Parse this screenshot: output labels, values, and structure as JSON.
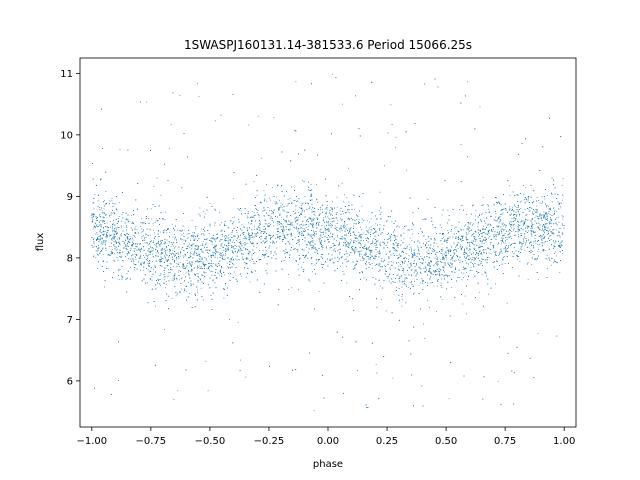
{
  "chart_data": {
    "type": "scatter",
    "title": "1SWASPJ160131.14-381533.6 Period 15066.25s",
    "xlabel": "phase",
    "ylabel": "flux",
    "xlim": [
      -1.05,
      1.05
    ],
    "ylim": [
      5.25,
      11.25
    ],
    "xticks": [
      -1.0,
      -0.75,
      -0.5,
      -0.25,
      0.0,
      0.25,
      0.5,
      0.75,
      1.0
    ],
    "xtick_labels": [
      "−1.00",
      "−0.75",
      "−0.50",
      "−0.25",
      "0.00",
      "0.25",
      "0.50",
      "0.75",
      "1.00"
    ],
    "yticks": [
      6,
      7,
      8,
      9,
      10,
      11
    ],
    "ytick_labels": [
      "6",
      "7",
      "8",
      "9",
      "10",
      "11"
    ],
    "grid": false,
    "legend": "none",
    "marker_color": "#1f77b4",
    "series": [
      {
        "phase_range": [
          -1.0,
          1.0
        ],
        "description_of_trend": "phase-folded light curve, two cycles",
        "trend_x": [
          -1.0,
          -0.9,
          -0.8,
          -0.7,
          -0.6,
          -0.5,
          -0.4,
          -0.3,
          -0.2,
          -0.1,
          0.0,
          0.1,
          0.2,
          0.3,
          0.4,
          0.5,
          0.6,
          0.7,
          0.8,
          0.9,
          1.0
        ],
        "trend_y": [
          8.45,
          8.35,
          8.2,
          8.05,
          7.95,
          8.0,
          8.15,
          8.35,
          8.5,
          8.5,
          8.4,
          8.3,
          8.15,
          8.0,
          7.95,
          8.0,
          8.15,
          8.35,
          8.5,
          8.5,
          8.45
        ],
        "scatter_sd": 0.3,
        "outlier_range": [
          5.5,
          11.0
        ],
        "n_points": 9000
      }
    ]
  }
}
